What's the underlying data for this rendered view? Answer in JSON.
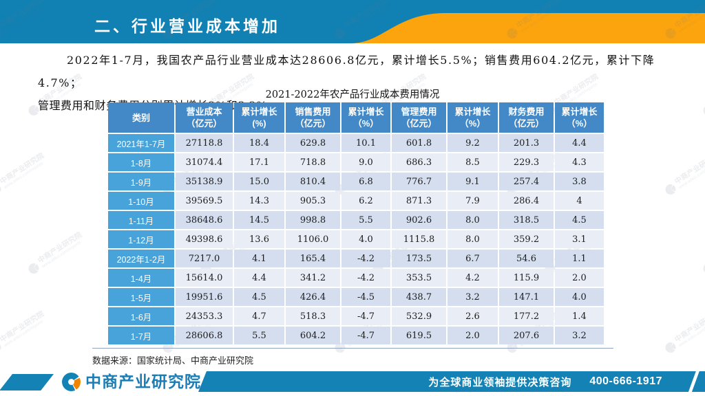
{
  "banner": {
    "title": "二、行业营业成本增加",
    "bg_color": "#1181b3",
    "accent_color": "#fca40d"
  },
  "paragraph": {
    "line1": "2022年1-7月，我国农产品行业营业成本达28606.8亿元，累计增长5.5%；销售费用604.2亿元，累计下降4.7%；",
    "line2": "管理费用和财务费用分别累计增长2%和3.2%。"
  },
  "chart_data": {
    "type": "table",
    "title": "2021-2022年农产品行业成本费用情况",
    "columns": [
      {
        "line1": "类别",
        "line2": ""
      },
      {
        "line1": "营业成本",
        "line2": "（亿元）"
      },
      {
        "line1": "累计增长(%)",
        "line2": ""
      },
      {
        "line1": "销售费用",
        "line2": "（亿元）"
      },
      {
        "line1": "累计增长",
        "line2": "（%）"
      },
      {
        "line1": "管理费用",
        "line2": "（亿元）"
      },
      {
        "line1": "累计增长",
        "line2": "（%）"
      },
      {
        "line1": "财务费用",
        "line2": "（亿元）"
      },
      {
        "line1": "累计增长",
        "line2": "（%）"
      }
    ],
    "rows": [
      {
        "label": "2021年1-7月",
        "values": [
          "27118.8",
          "18.4",
          "629.8",
          "10.1",
          "601.8",
          "9.2",
          "201.3",
          "4.4"
        ]
      },
      {
        "label": "1-8月",
        "values": [
          "31074.4",
          "17.1",
          "718.8",
          "9.0",
          "686.3",
          "8.5",
          "229.3",
          "4.3"
        ]
      },
      {
        "label": "1-9月",
        "values": [
          "35138.9",
          "15.0",
          "810.4",
          "6.8",
          "776.7",
          "9.1",
          "257.4",
          "3.8"
        ]
      },
      {
        "label": "1-10月",
        "values": [
          "39569.5",
          "14.3",
          "905.3",
          "6.2",
          "871.3",
          "7.9",
          "286.4",
          "4"
        ]
      },
      {
        "label": "1-11月",
        "values": [
          "38648.6",
          "14.5",
          "998.8",
          "5.5",
          "902.6",
          "8.0",
          "318.5",
          "4.5"
        ]
      },
      {
        "label": "1-12月",
        "values": [
          "49398.6",
          "13.6",
          "1106.0",
          "4.0",
          "1115.8",
          "8.0",
          "359.2",
          "3.1"
        ]
      },
      {
        "label": "2022年1-2月",
        "values": [
          "7217.0",
          "4.1",
          "165.4",
          "-4.2",
          "173.5",
          "6.7",
          "54.6",
          "1.1"
        ]
      },
      {
        "label": "1-4月",
        "values": [
          "15614.0",
          "4.4",
          "341.2",
          "-4.2",
          "353.5",
          "4.2",
          "115.9",
          "2.0"
        ]
      },
      {
        "label": "1-5月",
        "values": [
          "19951.6",
          "4.5",
          "426.4",
          "-4.5",
          "438.7",
          "3.2",
          "147.1",
          "4.0"
        ]
      },
      {
        "label": "1-6月",
        "values": [
          "24353.3",
          "4.7",
          "518.3",
          "-4.7",
          "532.9",
          "2.6",
          "177.2",
          "1.4"
        ]
      },
      {
        "label": "1-7月",
        "values": [
          "28606.8",
          "5.5",
          "604.2",
          "-4.7",
          "619.5",
          "2.0",
          "207.6",
          "3.2"
        ]
      }
    ],
    "style": {
      "header_bg": "#4389c8",
      "row_label_bg": "#47a3da",
      "row_odd_bg": "#d4deee",
      "row_even_bg": "#e9edf6"
    }
  },
  "source": "数据来源：国家统计局、中商产业研究院",
  "footer": {
    "logo_text": "中商产业研究院",
    "slogan": "为全球商业领袖提供决策咨询",
    "phone": "400-666-1917",
    "bar_color": "#1482b4",
    "logo_orange": "#f08300"
  },
  "watermark": {
    "line1": "中商产业研究院",
    "line2": "www.askci.com/reports"
  }
}
